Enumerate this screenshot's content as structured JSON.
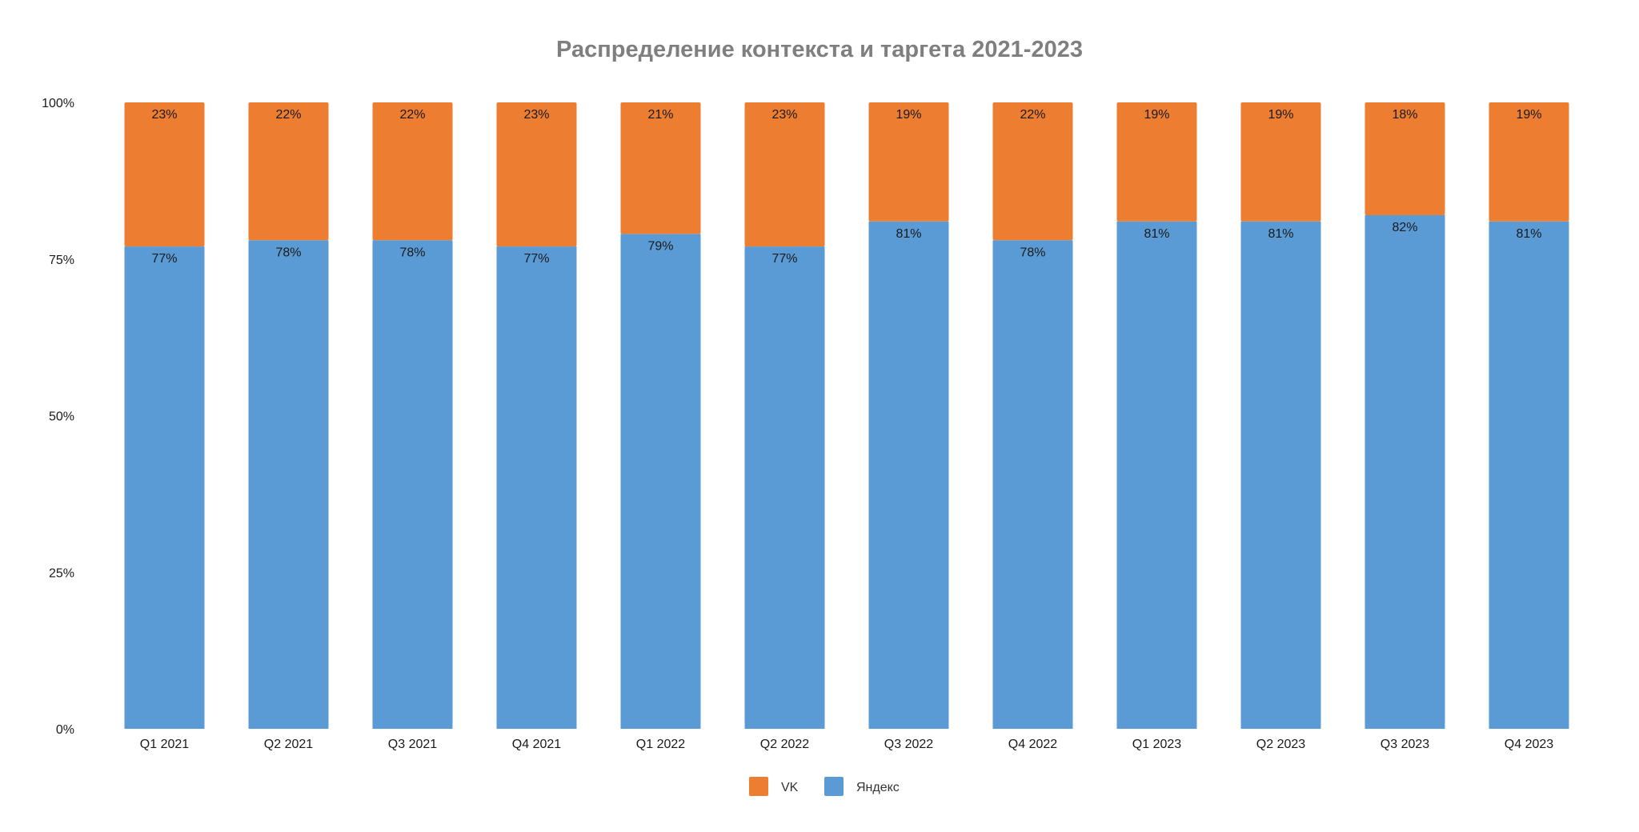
{
  "chart_data": {
    "type": "bar",
    "stacked": true,
    "title": "Распределение контекста и таргета 2021-2023",
    "categories": [
      "Q1 2021",
      "Q2 2021",
      "Q3 2021",
      "Q4 2021",
      "Q1 2022",
      "Q2 2022",
      "Q3 2022",
      "Q4 2022",
      "Q1 2023",
      "Q2 2023",
      "Q3 2023",
      "Q4 2023"
    ],
    "series": [
      {
        "name": "Яндекс",
        "color": "#5b9bd5",
        "values": [
          77,
          78,
          78,
          77,
          79,
          77,
          81,
          78,
          81,
          81,
          82,
          81
        ],
        "labels": [
          "77%",
          "78%",
          "78%",
          "77%",
          "79%",
          "77%",
          "81%",
          "78%",
          "81%",
          "81%",
          "82%",
          "81%"
        ]
      },
      {
        "name": "VK",
        "color": "#ed7d31",
        "values": [
          23,
          22,
          22,
          23,
          21,
          23,
          19,
          22,
          19,
          19,
          18,
          19
        ],
        "labels": [
          "23%",
          "22%",
          "22%",
          "23%",
          "21%",
          "23%",
          "19%",
          "22%",
          "19%",
          "19%",
          "18%",
          "19%"
        ]
      }
    ],
    "legend": {
      "position": "bottom",
      "order": [
        "VK",
        "Яндекс"
      ]
    },
    "yticks": [
      "0%",
      "25%",
      "50%",
      "75%",
      "100%"
    ],
    "ylim": [
      0,
      100
    ],
    "grid": false,
    "xlabel": "",
    "ylabel": ""
  }
}
